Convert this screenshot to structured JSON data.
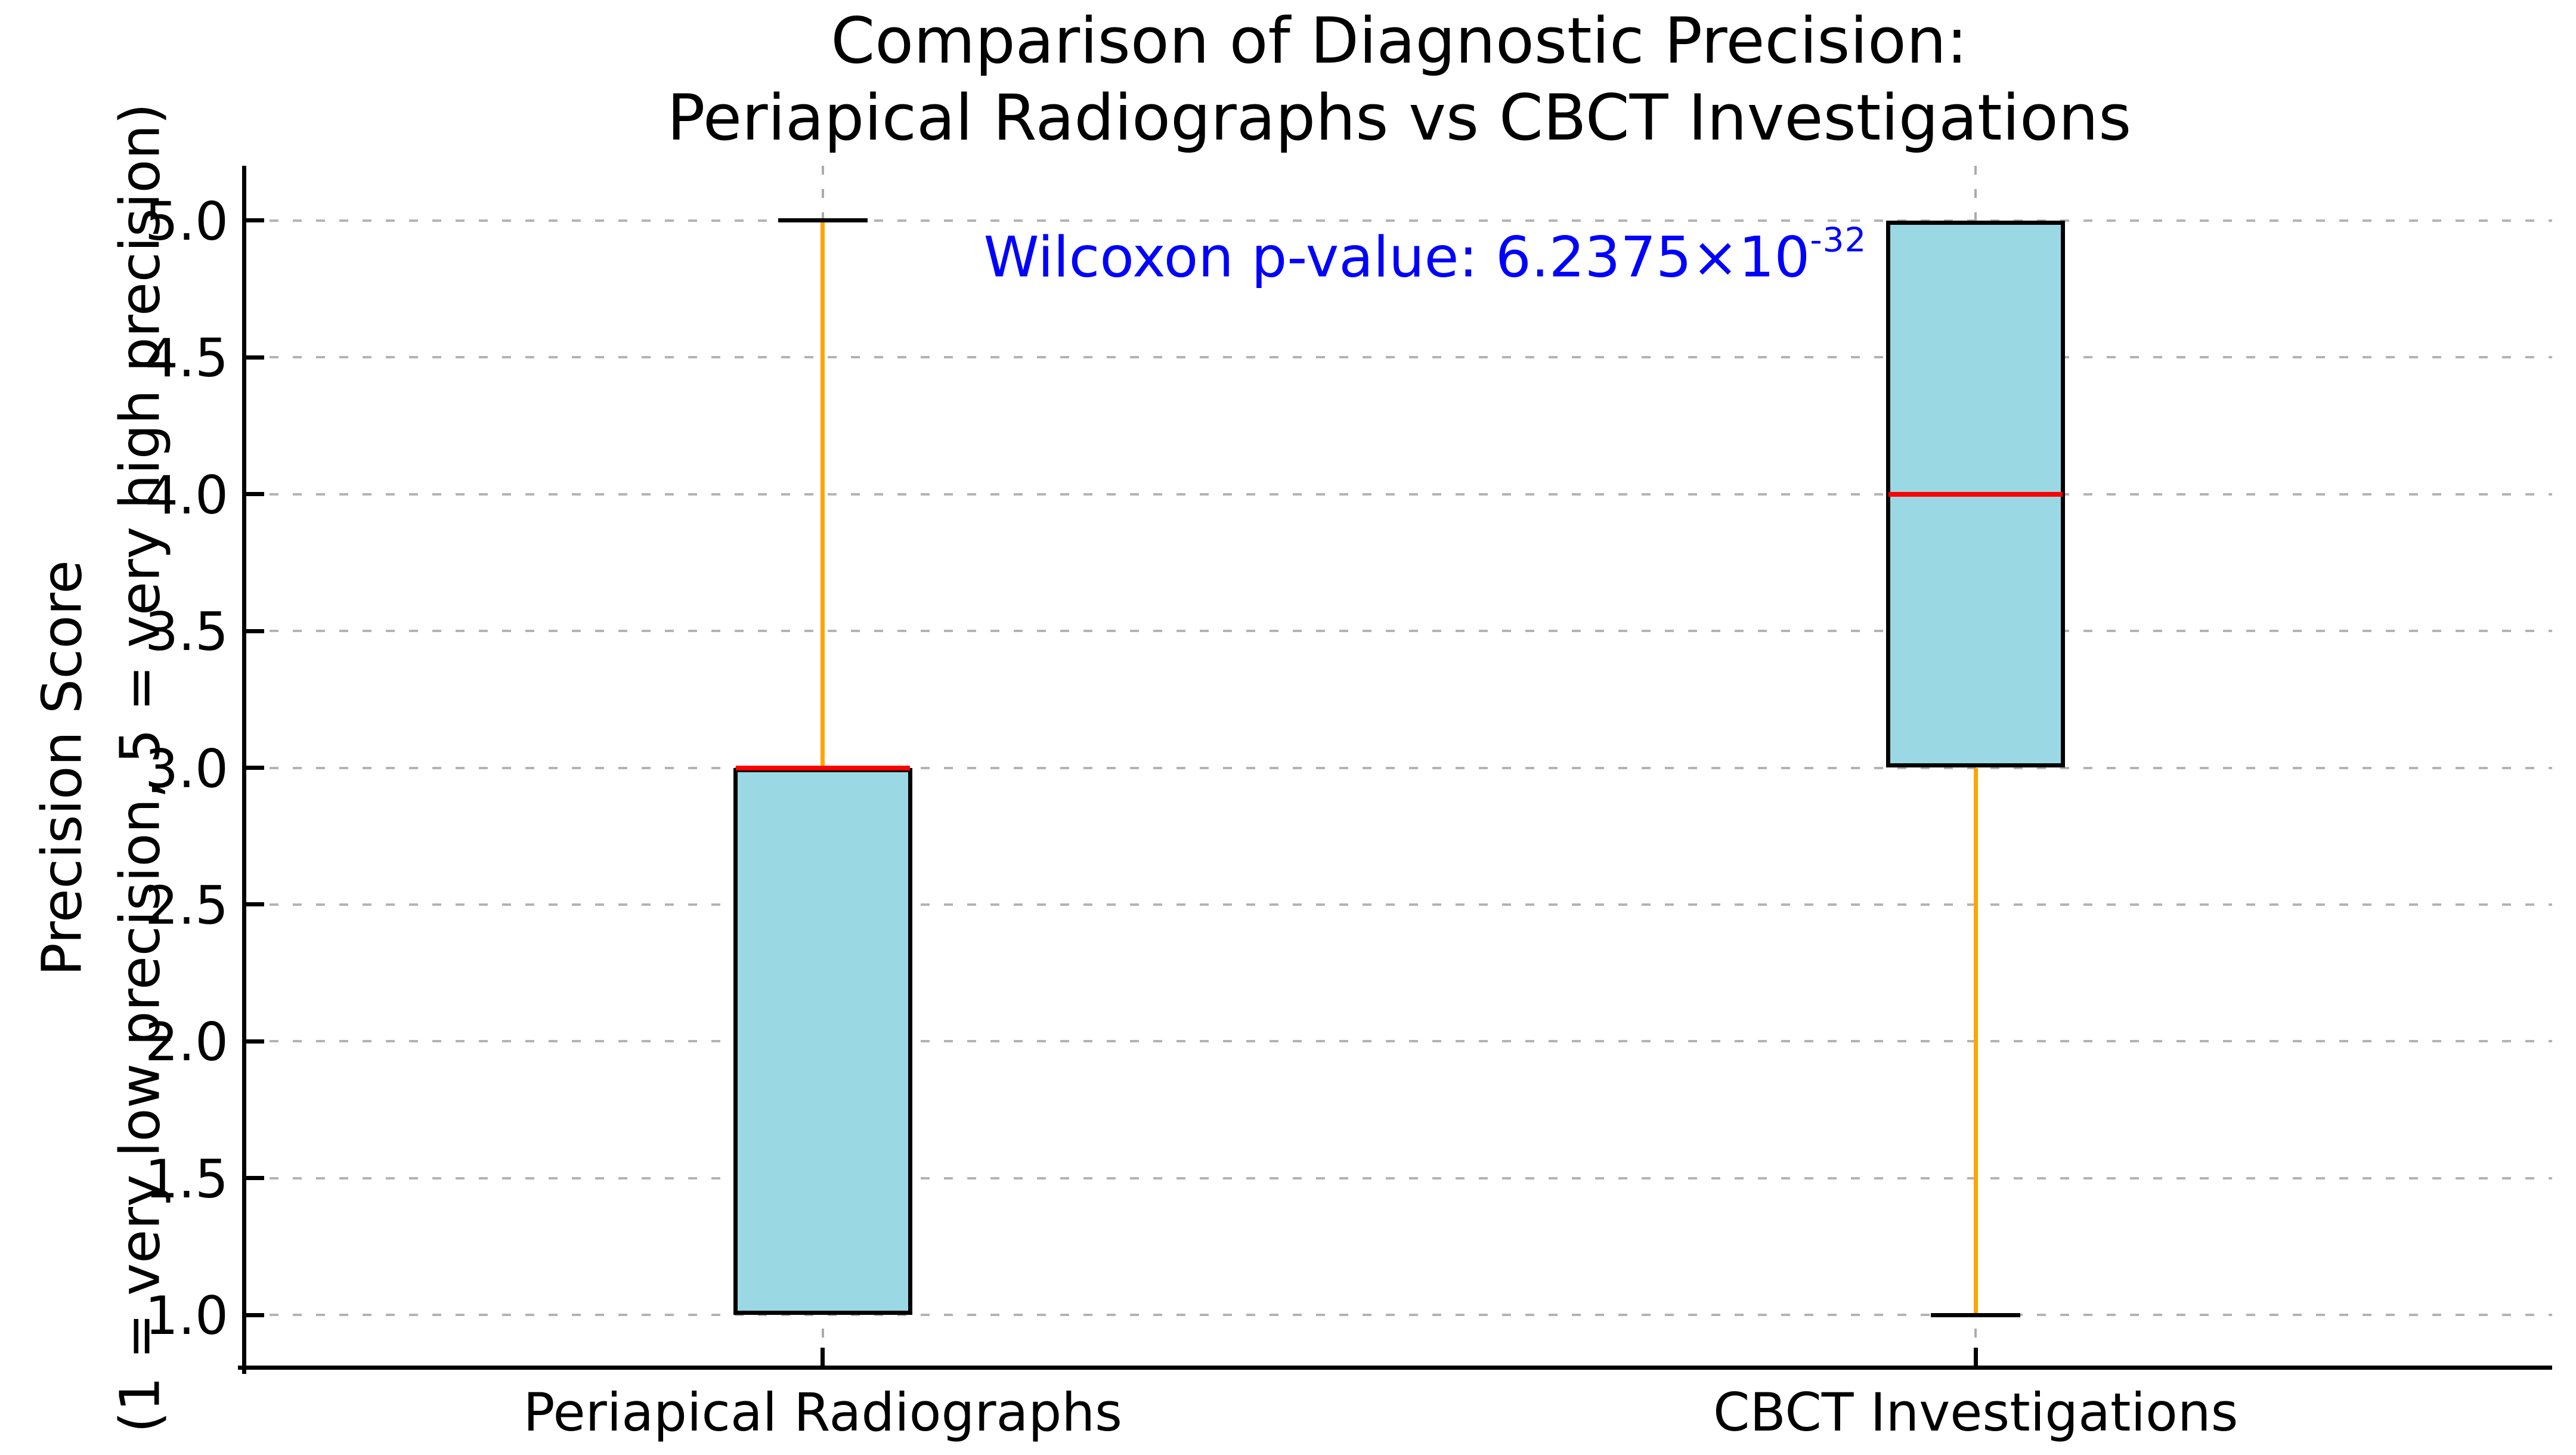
{
  "chart_data": {
    "type": "boxplot",
    "title": "Comparison of Diagnostic Precision:\nPeriapical Radiographs vs CBCT Investigations",
    "ylabel": "Precision Score\n(1 = very low precision, 5 = very high precision)",
    "xlabel": "",
    "categories": [
      "Periapical Radiographs",
      "CBCT Investigations"
    ],
    "series": [
      {
        "name": "Periapical Radiographs",
        "whisker_low": 1.0,
        "q1": 1.0,
        "median": 3.0,
        "q3": 3.0,
        "whisker_high": 5.0
      },
      {
        "name": "CBCT Investigations",
        "whisker_low": 1.0,
        "q1": 3.0,
        "median": 4.0,
        "q3": 5.0,
        "whisker_high": 5.0
      }
    ],
    "yticks": [
      1.0,
      1.5,
      2.0,
      2.5,
      3.0,
      3.5,
      4.0,
      4.5,
      5.0
    ],
    "ytick_labels": [
      "1.0",
      "1.5",
      "2.0",
      "2.5",
      "3.0",
      "3.5",
      "4.0",
      "4.5",
      "5.0"
    ],
    "ylim": [
      0.8,
      5.2
    ],
    "grid": {
      "horizontal": true,
      "vertical": true,
      "style": "dashed",
      "legend": false
    },
    "annotation": {
      "text_base": "Wilcoxon p-value: 6.2375×10",
      "exponent": "-32"
    },
    "colors": {
      "box_fill": "#9AD8E4",
      "box_edge": "#000000",
      "median": "#FF0000",
      "whisker": "#FFA500",
      "cap": "#000000",
      "grid": "#b3b3b3",
      "annotation": "#0000FF",
      "text": "#000000",
      "background": "#ffffff"
    }
  }
}
